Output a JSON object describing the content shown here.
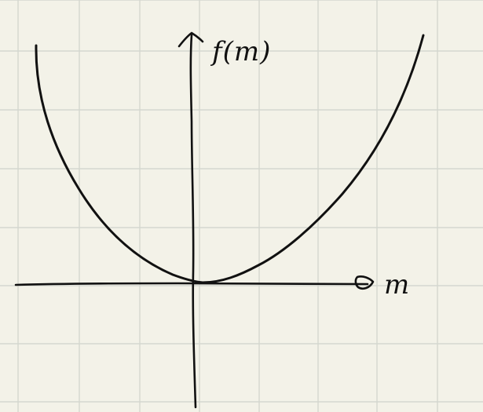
{
  "diagram": {
    "y_axis_label": "f(m)",
    "x_axis_label": "m",
    "curve_shape": "upward parabola with vertex at origin"
  },
  "colors": {
    "paper": "#f3f2e8",
    "grid": "#d4d7cf",
    "ink": "#111111"
  }
}
